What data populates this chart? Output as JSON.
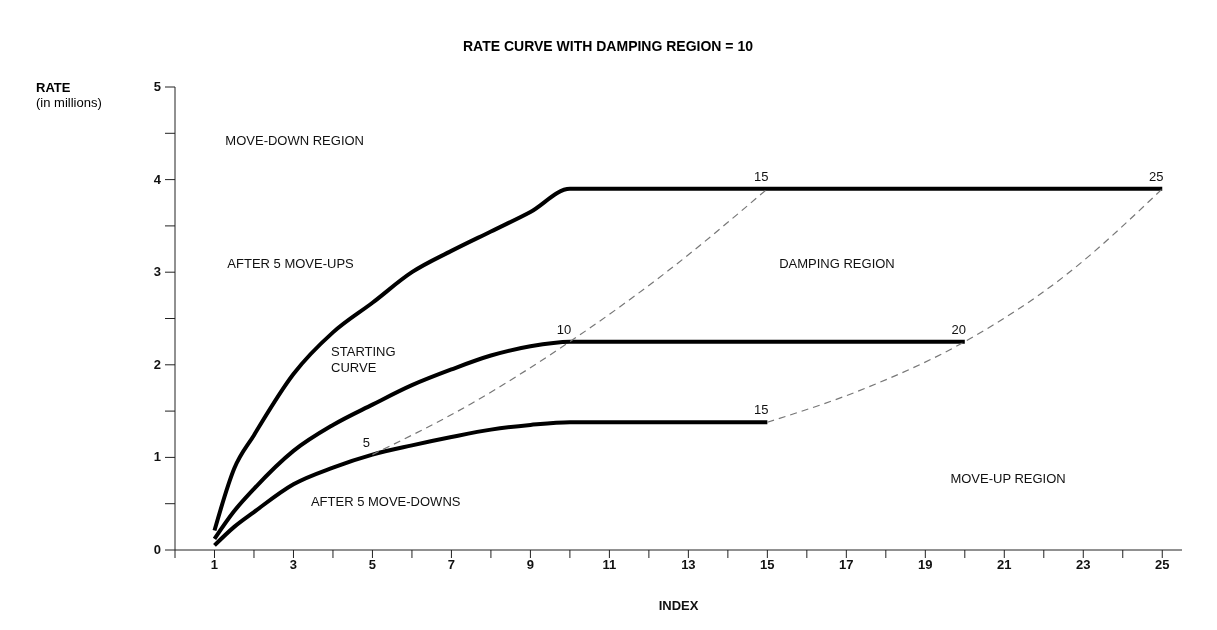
{
  "chart_data": {
    "type": "line",
    "title": "RATE CURVE WITH DAMPING REGION = 10",
    "xlabel": "INDEX",
    "ylabel": "RATE\n(in millions)",
    "xlim": [
      0,
      25.5
    ],
    "ylim": [
      0,
      5
    ],
    "xticks": [
      {
        "value": 0,
        "label": null
      },
      1,
      {
        "value": 2,
        "label": null
      },
      3,
      {
        "value": 4,
        "label": null
      },
      5,
      {
        "value": 6,
        "label": null
      },
      7,
      {
        "value": 8,
        "label": null
      },
      9,
      {
        "value": 10,
        "label": null
      },
      11,
      {
        "value": 12,
        "label": null
      },
      13,
      {
        "value": 14,
        "label": null
      },
      15,
      {
        "value": 16,
        "label": null
      },
      17,
      {
        "value": 18,
        "label": null
      },
      19,
      {
        "value": 20,
        "label": null
      },
      21,
      {
        "value": 22,
        "label": null
      },
      23,
      {
        "value": 24,
        "label": null
      },
      25
    ],
    "yticks": [
      0,
      {
        "value": 0.5,
        "label": null
      },
      1,
      {
        "value": 1.5,
        "label": null
      },
      2,
      {
        "value": 2.5,
        "label": null
      },
      3,
      {
        "value": 3.5,
        "label": null
      },
      4,
      {
        "value": 4.5,
        "label": null
      },
      5
    ],
    "grid": false,
    "legend": false,
    "marker": "none",
    "series": [
      {
        "color": "#000000",
        "line_style": "solid",
        "x": [
          1,
          1.5,
          2,
          3,
          4,
          5,
          6,
          7,
          8,
          9,
          10,
          25
        ],
        "values": [
          0.21,
          0.88,
          1.24,
          1.9,
          2.35,
          2.67,
          3.0,
          3.23,
          3.44,
          3.65,
          3.9,
          3.9
        ]
      },
      {
        "color": "#000000",
        "line_style": "solid",
        "x": [
          1,
          1.5,
          2,
          3,
          4,
          5,
          6,
          7,
          8,
          9,
          10,
          20
        ],
        "values": [
          0.12,
          0.42,
          0.66,
          1.07,
          1.35,
          1.57,
          1.78,
          1.95,
          2.1,
          2.2,
          2.25,
          2.25
        ]
      },
      {
        "color": "#000000",
        "line_style": "solid",
        "x": [
          1,
          1.5,
          2,
          3,
          4,
          5,
          6,
          7,
          8,
          9,
          10,
          15
        ],
        "values": [
          0.05,
          0.25,
          0.41,
          0.71,
          0.89,
          1.03,
          1.13,
          1.22,
          1.3,
          1.35,
          1.38,
          1.38
        ]
      },
      {
        "color": "#777777",
        "line_style": "dashed",
        "x": [
          5,
          7.5,
          10,
          12.5,
          15
        ],
        "values": [
          1.03,
          1.58,
          2.25,
          3.02,
          3.9
        ]
      },
      {
        "color": "#777777",
        "line_style": "dashed",
        "x": [
          15,
          17.5,
          20,
          22.5,
          25
        ],
        "values": [
          1.38,
          1.75,
          2.25,
          2.95,
          3.9
        ]
      }
    ],
    "annotations": [
      {
        "text": "5",
        "x": 5,
        "y": 1.03
      },
      {
        "text": "10",
        "x": 10,
        "y": 2.25
      },
      {
        "text": "15",
        "x": 15,
        "y": 3.9
      },
      {
        "text": "15",
        "x": 15,
        "y": 1.38
      },
      {
        "text": "20",
        "x": 20,
        "y": 2.25
      },
      {
        "text": "25",
        "x": 25,
        "y": 3.9
      },
      "MOVE-DOWN REGION",
      "AFTER 5 MOVE-UPS",
      "STARTING\nCURVE",
      "AFTER 5 MOVE-DOWNS",
      "DAMPING REGION",
      "MOVE-UP REGION"
    ]
  }
}
